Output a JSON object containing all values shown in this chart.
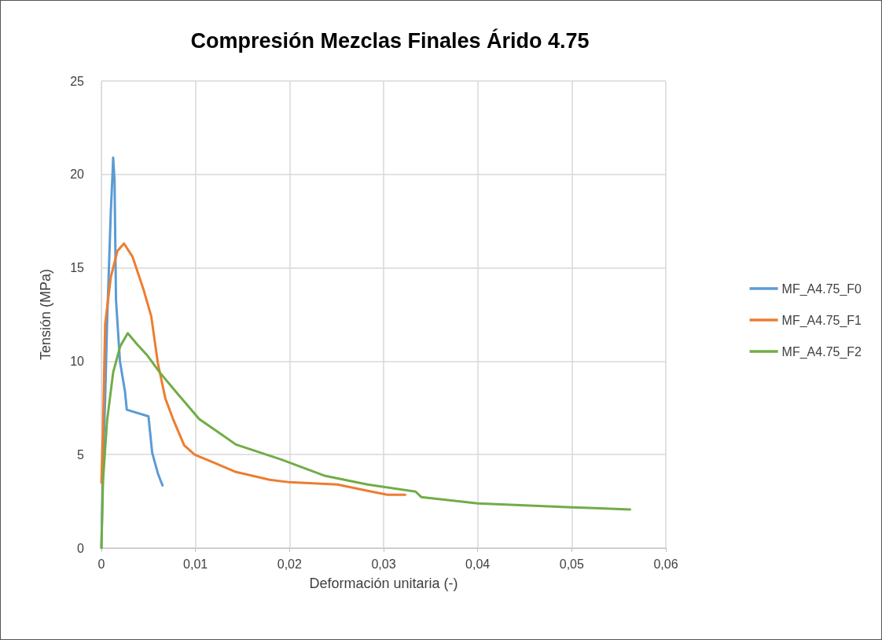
{
  "chart_data": {
    "type": "line",
    "title": "Compresión Mezclas Finales Árido 4.75",
    "xlabel": "Deformación unitaria (-)",
    "ylabel": "Tensión (MPa)",
    "xlim": [
      0,
      0.06
    ],
    "xticks": [
      0,
      {
        "value": 0.01,
        "label": "0,01"
      },
      {
        "value": 0.02,
        "label": "0,02"
      },
      {
        "value": 0.03,
        "label": "0,03"
      },
      {
        "value": 0.04,
        "label": "0,04"
      },
      {
        "value": 0.05,
        "label": "0,05"
      },
      {
        "value": 0.06,
        "label": "0,06"
      }
    ],
    "ylim": [
      0,
      25
    ],
    "yticks": [
      0,
      5,
      10,
      15,
      20,
      25
    ],
    "grid": true,
    "legend": "right",
    "marker": "none",
    "line_style": "solid",
    "series": [
      {
        "name": "MF_A4.75_F0",
        "color": "#5b9bd5",
        "x": [
          0,
          0.0002,
          0.0004,
          0.0006,
          0.0008,
          0.001,
          0.00118,
          0.00125,
          0.0013,
          0.0014,
          0.00155,
          0.00197,
          0.0025,
          0.0027,
          0.005,
          0.0054,
          0.006,
          0.0063,
          0.0065
        ],
        "values": [
          0,
          5,
          8,
          12,
          15,
          18,
          20,
          20.9,
          20.5,
          19.6,
          13.3,
          10,
          8.4,
          7.4,
          7.05,
          5.1,
          4,
          3.6,
          3.35
        ]
      },
      {
        "name": "MF_A4.75_F1",
        "color": "#ed7d31",
        "x": [
          0,
          0.00017,
          0.0004,
          0.001,
          0.0017,
          0.0024,
          0.0033,
          0.0045,
          0.0053,
          0.006,
          0.0068,
          0.0077,
          0.0088,
          0.0099,
          0.0118,
          0.0143,
          0.0179,
          0.02,
          0.0251,
          0.0283,
          0.0304,
          0.0323
        ],
        "values": [
          3.5,
          6.3,
          12,
          14.5,
          15.9,
          16.3,
          15.6,
          13.8,
          12.4,
          9.9,
          8,
          6.8,
          5.5,
          5,
          4.6,
          4.07,
          3.65,
          3.52,
          3.4,
          3.06,
          2.85,
          2.85
        ]
      },
      {
        "name": "MF_A4.75_F2",
        "color": "#70ad47",
        "x": [
          0,
          0.00017,
          0.0006,
          0.00125,
          0.002,
          0.0028,
          0.0038,
          0.0049,
          0.0062,
          0.0082,
          0.0104,
          0.0127,
          0.0143,
          0.0191,
          0.0238,
          0.0283,
          0.0334,
          0.034,
          0.04,
          0.05,
          0.0562
        ],
        "values": [
          0,
          3.6,
          6.8,
          9.4,
          10.8,
          11.5,
          10.9,
          10.3,
          9.4,
          8.2,
          6.9,
          6.1,
          5.54,
          4.74,
          3.86,
          3.4,
          3.02,
          2.73,
          2.39,
          2.18,
          2.06
        ]
      }
    ]
  }
}
